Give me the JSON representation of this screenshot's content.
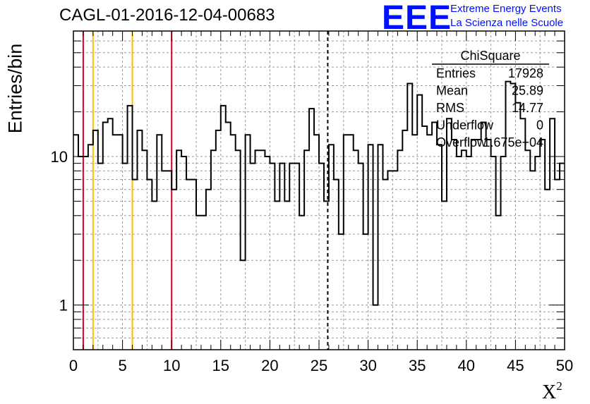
{
  "header": {
    "run_id": "CAGL-01-2016-12-04-00683",
    "logo_text": "EEE",
    "logo_line1": "Extreme Energy Events",
    "logo_line2": "La Scienza nelle Scuole",
    "logo_color": "#0010ff"
  },
  "stats_box": {
    "title": "ChiSquare",
    "rows": [
      {
        "label": "Entries",
        "value": "17928"
      },
      {
        "label": "Mean",
        "value": "25.89"
      },
      {
        "label": "RMS",
        "value": "14.77"
      },
      {
        "label": "Underflow",
        "value": "0"
      },
      {
        "label": "Overflow",
        "value": "1.675e+04"
      }
    ]
  },
  "chart_data": {
    "type": "histogram",
    "title": "CAGL-01-2016-12-04-00683",
    "xlabel": "X",
    "xlabel_superscript": "2",
    "ylabel": "Entries/bin",
    "xlim": [
      0,
      50
    ],
    "ylim": [
      0.5,
      70
    ],
    "y_scale": "log",
    "grid": true,
    "bin_width": 0.5,
    "x_ticks": [
      0,
      5,
      10,
      15,
      20,
      25,
      30,
      35,
      40,
      45,
      50
    ],
    "y_ticks": [
      1,
      10
    ],
    "values": [
      14,
      10,
      10,
      12,
      15,
      9,
      17,
      18,
      14,
      14,
      9,
      22,
      7,
      15,
      11,
      7,
      5,
      14,
      8,
      8,
      6,
      11,
      10,
      7,
      7,
      4,
      4,
      6,
      11,
      15,
      22,
      17,
      14,
      11,
      2,
      14,
      9,
      11,
      11,
      10,
      9,
      5,
      9,
      5,
      9,
      9,
      4,
      11,
      21,
      14,
      9,
      5,
      12,
      7,
      3,
      14,
      14,
      11,
      9,
      3,
      12,
      1,
      12,
      7,
      8,
      8,
      11,
      15,
      31,
      14,
      26,
      16,
      14,
      17,
      12,
      5,
      18,
      13,
      10,
      11,
      10,
      13,
      13,
      17,
      13,
      10,
      4,
      10,
      32,
      31,
      23,
      18,
      11,
      8,
      10,
      13,
      6,
      18,
      7,
      9
    ],
    "vertical_lines": [
      {
        "x": 1,
        "color": "#e0001e"
      },
      {
        "x": 2,
        "color": "#ffbf00"
      },
      {
        "x": 6,
        "color": "#ffbf00"
      },
      {
        "x": 10,
        "color": "#e0001e"
      },
      {
        "x": 25.89,
        "color": "#000000",
        "dashed": true
      }
    ]
  }
}
